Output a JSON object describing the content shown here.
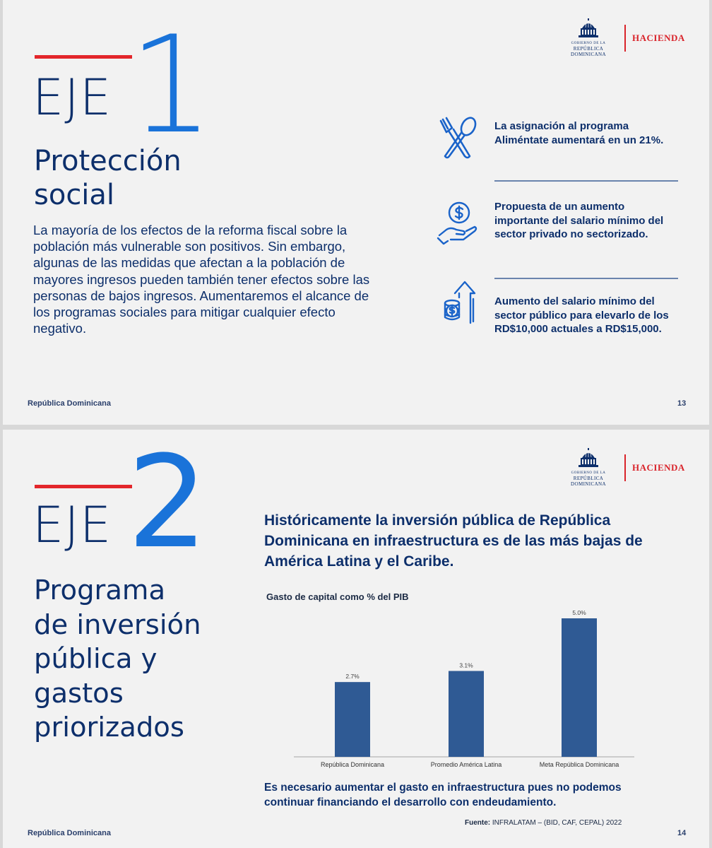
{
  "brand": {
    "seal_caption_top": "GOBIERNO DE LA",
    "seal_caption": "REPÚBLICA DOMINICANA",
    "ministry": "HACIENDA",
    "colors": {
      "navy": "#0d2f6b",
      "blue": "#1a73d9",
      "red": "#e3262b",
      "bar": "#2f5a94"
    }
  },
  "slide1": {
    "eje_word": "EJE",
    "eje_number": "1",
    "title_line1": "Protección",
    "title_line2": "social",
    "body": "La mayoría de los efectos de la reforma fiscal sobre la población más vulnerable son positivos. Sin embargo, algunas de las medidas que afectan a la población de mayores ingresos pueden también tener efectos sobre las personas de bajos ingresos. Aumentaremos el alcance de los programas sociales para mitigar cualquier efecto negativo.",
    "bullets": [
      {
        "icon": "fork-spoon-icon",
        "text": "La asignación al programa Aliméntate aumentará en un 21%."
      },
      {
        "icon": "hand-coin-icon",
        "text": "Propuesta de un aumento importante del salario mínimo del sector privado no sectorizado."
      },
      {
        "icon": "coins-arrow-up-icon",
        "text": "Aumento del salario mínimo del sector público para elevarlo de los RD$10,000 actuales a RD$15,000."
      }
    ],
    "footer_left": "República Dominicana",
    "page_number": "13"
  },
  "slide2": {
    "eje_word": "EJE",
    "eje_number": "2",
    "title_lines": [
      "Programa",
      "de inversión",
      "pública y",
      "gastos",
      "priorizados"
    ],
    "headline": "Históricamente la inversión pública de República Dominicana en infraestructura es de las más bajas de América Latina y el Caribe.",
    "conclusion": "Es necesario aumentar el gasto en infraestructura pues no podemos continuar financiando el desarrollo con endeudamiento.",
    "source_label": "Fuente:",
    "source_text": " INFRALATAM – (BID, CAF, CEPAL) 2022",
    "footer_left": "República Dominicana",
    "page_number": "14"
  },
  "chart_data": {
    "type": "bar",
    "title": "Gasto de capital como % del PIB",
    "categories": [
      "República Dominicana",
      "Promedio América Latina",
      "Meta República Dominicana"
    ],
    "values": [
      2.7,
      3.1,
      5.0
    ],
    "data_labels": [
      "2.7%",
      "3.1%",
      "5.0%"
    ],
    "ylim": [
      0,
      5.0
    ],
    "xlabel": "",
    "ylabel": "",
    "grid": false,
    "legend": "none"
  }
}
